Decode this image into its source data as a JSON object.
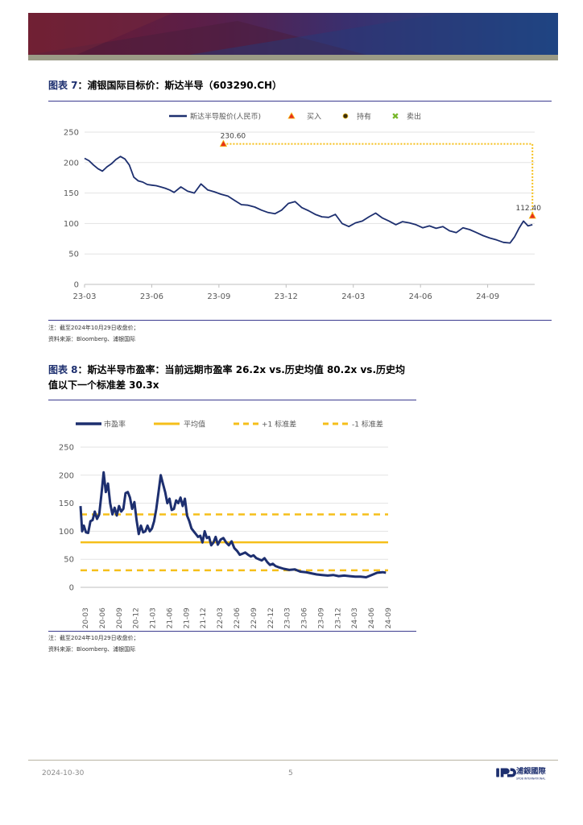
{
  "figure1": {
    "label": "图表 7",
    "title": "浦银国际目标价：斯达半导（603290.CH）",
    "note": "注：截至2024年10月29日收盘价；",
    "source": "资料来源：Bloomberg、浦银国际"
  },
  "figure2": {
    "label": "图表 8",
    "title_line1": "斯达半导市盈率：当前远期市盈率 26.2x vs.历史均值 80.2x vs.历史均",
    "title_line2": "值以下一个标准差 30.3x",
    "note": "注：截至2024年10月29日收盘价；",
    "source": "资料来源：Bloomberg、浦银国际"
  },
  "footer": {
    "date": "2024-10-30",
    "page": "5",
    "logo_text": "浦銀國際",
    "logo_sub": "SPDB INTERNATIONAL"
  },
  "colors": {
    "navy": "#1d2f6f",
    "gold": "#f5bf1a",
    "buy": "#e8301c",
    "hold": "#3b2e10",
    "sell": "#77b72a"
  },
  "chart_data": [
    {
      "type": "line",
      "title": "浦银国际目标价：斯达半导（603290.CH）",
      "legend": [
        "斯达半导股价(人民币)",
        "买入",
        "持有",
        "卖出"
      ],
      "legend_position": "top",
      "x_tick_labels": [
        "23-03",
        "23-06",
        "23-09",
        "23-12",
        "24-03",
        "24-06",
        "24-09"
      ],
      "x_tick_months": [
        0,
        3,
        6,
        9,
        12,
        15,
        18
      ],
      "x_range_months": [
        0,
        20.1
      ],
      "y_range": [
        0,
        250
      ],
      "y_ticks": [
        0,
        50,
        100,
        150,
        200,
        250
      ],
      "series": [
        {
          "name": "斯达半导股价(人民币)",
          "x_months": [
            0,
            0.2,
            0.4,
            0.6,
            0.8,
            1.0,
            1.2,
            1.4,
            1.6,
            1.8,
            2.0,
            2.2,
            2.4,
            2.6,
            2.8,
            3.0,
            3.2,
            3.4,
            3.6,
            3.8,
            4.0,
            4.3,
            4.6,
            4.9,
            5.2,
            5.5,
            5.8,
            6.1,
            6.4,
            6.7,
            7.0,
            7.3,
            7.6,
            7.9,
            8.2,
            8.5,
            8.8,
            9.1,
            9.4,
            9.7,
            10.0,
            10.3,
            10.6,
            10.9,
            11.2,
            11.5,
            11.8,
            12.1,
            12.4,
            12.7,
            13.0,
            13.3,
            13.6,
            13.9,
            14.2,
            14.5,
            14.8,
            15.1,
            15.4,
            15.7,
            16.0,
            16.3,
            16.6,
            16.9,
            17.2,
            17.5,
            17.8,
            18.1,
            18.4,
            18.7,
            19.0,
            19.2,
            19.4,
            19.6,
            19.8,
            20.0
          ],
          "values": [
            207,
            203,
            196,
            190,
            186,
            193,
            198,
            205,
            210,
            206,
            196,
            176,
            170,
            168,
            164,
            163,
            162,
            160,
            158,
            155,
            151,
            160,
            153,
            150,
            165,
            155,
            152,
            148,
            145,
            138,
            131,
            130,
            127,
            122,
            118,
            116,
            122,
            133,
            136,
            126,
            121,
            115,
            111,
            110,
            115,
            100,
            95,
            101,
            104,
            111,
            117,
            109,
            104,
            98,
            103,
            101,
            98,
            93,
            96,
            92,
            95,
            88,
            85,
            93,
            90,
            85,
            80,
            76,
            73,
            69,
            68,
            78,
            92,
            104,
            96,
            98
          ]
        }
      ],
      "markers": [
        {
          "type": "买入",
          "x_month": 6.2,
          "value": 230.6,
          "label": "230.60"
        },
        {
          "type": "买入",
          "x_month": 20.0,
          "value": 112.4,
          "label": "112.40"
        }
      ]
    },
    {
      "type": "line",
      "title": "斯达半导市盈率",
      "legend": [
        "市盈率",
        "平均值",
        "+1 标准差",
        "-1 标准差"
      ],
      "legend_position": "top",
      "x_tick_labels": [
        "2020-03",
        "2020-06",
        "2020-09",
        "2020-12",
        "2021-03",
        "2021-06",
        "2021-09",
        "2021-12",
        "2022-03",
        "2022-06",
        "2022-09",
        "2022-12",
        "2023-03",
        "2023-06",
        "2023-09",
        "2023-12",
        "2024-03",
        "2024-06",
        "2024-09"
      ],
      "x_range_months": [
        0,
        56
      ],
      "y_range": [
        0,
        250
      ],
      "y_ticks": [
        0,
        50,
        100,
        150,
        200,
        250
      ],
      "reference_lines": [
        {
          "name": "平均值",
          "value": 80.2
        },
        {
          "name": "+1 标准差",
          "value": 130.1
        },
        {
          "name": "-1 标准差",
          "value": 30.3
        }
      ],
      "series": [
        {
          "name": "市盈率",
          "x_months": [
            0,
            0.3,
            0.6,
            1.0,
            1.4,
            1.8,
            2.2,
            2.6,
            3.0,
            3.4,
            3.8,
            4.2,
            4.6,
            5.0,
            5.4,
            5.8,
            6.2,
            6.6,
            7.0,
            7.4,
            7.8,
            8.2,
            8.6,
            9.0,
            9.4,
            9.8,
            10.2,
            10.6,
            11.0,
            11.4,
            11.8,
            12.2,
            12.6,
            13.0,
            13.4,
            13.8,
            14.2,
            14.6,
            15.0,
            15.4,
            15.8,
            16.2,
            16.6,
            17.0,
            17.4,
            17.8,
            18.2,
            18.6,
            19.0,
            19.4,
            19.8,
            20.2,
            20.6,
            21.0,
            21.4,
            21.8,
            22.2,
            22.6,
            23.0,
            23.4,
            23.8,
            24.2,
            24.6,
            25.0,
            25.5,
            26.0,
            26.5,
            27.0,
            27.5,
            28.0,
            28.5,
            29.0,
            29.5,
            30.0,
            30.5,
            31.0,
            31.5,
            32.0,
            32.5,
            33.0,
            33.5,
            34.0,
            34.5,
            35.0,
            35.5,
            36.0,
            37.0,
            38.0,
            39.0,
            40.0,
            41.0,
            42.0,
            43.0,
            44.0,
            45.0,
            46.0,
            47.0,
            48.0,
            49.0,
            50.0,
            51.0,
            52.0,
            53.0,
            54.0,
            55.0,
            55.6
          ],
          "values": [
            145,
            100,
            110,
            98,
            97,
            118,
            120,
            135,
            122,
            130,
            165,
            205,
            170,
            185,
            150,
            130,
            142,
            128,
            145,
            135,
            140,
            168,
            170,
            160,
            140,
            152,
            120,
            95,
            110,
            98,
            100,
            110,
            100,
            105,
            118,
            140,
            170,
            200,
            185,
            170,
            150,
            158,
            138,
            140,
            155,
            150,
            160,
            145,
            158,
            128,
            118,
            105,
            100,
            95,
            90,
            92,
            80,
            100,
            88,
            90,
            75,
            80,
            90,
            76,
            85,
            88,
            80,
            75,
            82,
            70,
            65,
            58,
            60,
            62,
            58,
            55,
            57,
            52,
            50,
            48,
            52,
            45,
            40,
            42,
            38,
            36,
            33,
            31,
            32,
            28,
            27,
            25,
            23,
            22,
            21,
            22,
            20,
            21,
            20,
            19,
            19,
            18,
            22,
            26,
            27,
            26
          ]
        }
      ]
    }
  ]
}
